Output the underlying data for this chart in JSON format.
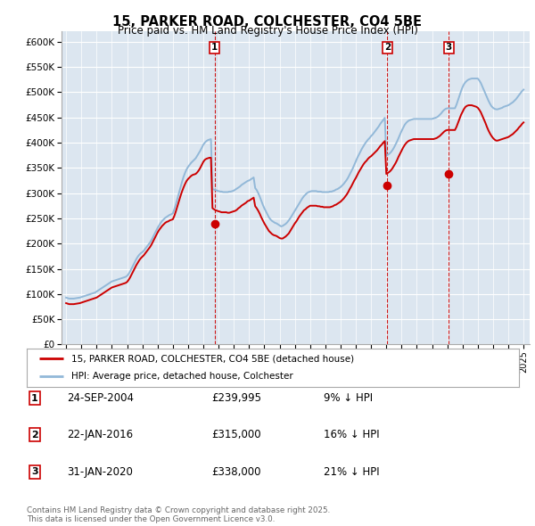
{
  "title": "15, PARKER ROAD, COLCHESTER, CO4 5BE",
  "subtitle": "Price paid vs. HM Land Registry's House Price Index (HPI)",
  "bg_color": "#dce6f0",
  "ylim": [
    0,
    620000
  ],
  "yticks": [
    0,
    50000,
    100000,
    150000,
    200000,
    250000,
    300000,
    350000,
    400000,
    450000,
    500000,
    550000,
    600000
  ],
  "hpi_color": "#92b8d8",
  "sale_color": "#cc0000",
  "vline_color": "#cc0000",
  "sale_points": [
    {
      "date_num": 2004.73,
      "price": 239995,
      "label": "1"
    },
    {
      "date_num": 2016.06,
      "price": 315000,
      "label": "2"
    },
    {
      "date_num": 2020.08,
      "price": 338000,
      "label": "3"
    }
  ],
  "legend_sale_label": "15, PARKER ROAD, COLCHESTER, CO4 5BE (detached house)",
  "legend_hpi_label": "HPI: Average price, detached house, Colchester",
  "table_rows": [
    {
      "num": "1",
      "date": "24-SEP-2004",
      "price": "£239,995",
      "pct": "9% ↓ HPI"
    },
    {
      "num": "2",
      "date": "22-JAN-2016",
      "price": "£315,000",
      "pct": "16% ↓ HPI"
    },
    {
      "num": "3",
      "date": "31-JAN-2020",
      "price": "£338,000",
      "pct": "21% ↓ HPI"
    }
  ],
  "footer": "Contains HM Land Registry data © Crown copyright and database right 2025.\nThis data is licensed under the Open Government Licence v3.0.",
  "hpi_years": [
    1995.0,
    1995.1,
    1995.2,
    1995.3,
    1995.4,
    1995.5,
    1995.6,
    1995.7,
    1995.8,
    1995.9,
    1996.0,
    1996.1,
    1996.2,
    1996.3,
    1996.4,
    1996.5,
    1996.6,
    1996.7,
    1996.8,
    1996.9,
    1997.0,
    1997.1,
    1997.2,
    1997.3,
    1997.4,
    1997.5,
    1997.6,
    1997.7,
    1997.8,
    1997.9,
    1998.0,
    1998.1,
    1998.2,
    1998.3,
    1998.4,
    1998.5,
    1998.6,
    1998.7,
    1998.8,
    1998.9,
    1999.0,
    1999.1,
    1999.2,
    1999.3,
    1999.4,
    1999.5,
    1999.6,
    1999.7,
    1999.8,
    1999.9,
    2000.0,
    2000.1,
    2000.2,
    2000.3,
    2000.4,
    2000.5,
    2000.6,
    2000.7,
    2000.8,
    2000.9,
    2001.0,
    2001.1,
    2001.2,
    2001.3,
    2001.4,
    2001.5,
    2001.6,
    2001.7,
    2001.8,
    2001.9,
    2002.0,
    2002.1,
    2002.2,
    2002.3,
    2002.4,
    2002.5,
    2002.6,
    2002.7,
    2002.8,
    2002.9,
    2003.0,
    2003.1,
    2003.2,
    2003.3,
    2003.4,
    2003.5,
    2003.6,
    2003.7,
    2003.8,
    2003.9,
    2004.0,
    2004.1,
    2004.2,
    2004.3,
    2004.4,
    2004.5,
    2004.6,
    2004.7,
    2004.8,
    2004.9,
    2005.0,
    2005.1,
    2005.2,
    2005.3,
    2005.4,
    2005.5,
    2005.6,
    2005.7,
    2005.8,
    2005.9,
    2006.0,
    2006.1,
    2006.2,
    2006.3,
    2006.4,
    2006.5,
    2006.6,
    2006.7,
    2006.8,
    2006.9,
    2007.0,
    2007.1,
    2007.2,
    2007.3,
    2007.4,
    2007.5,
    2007.6,
    2007.7,
    2007.8,
    2007.9,
    2008.0,
    2008.1,
    2008.2,
    2008.3,
    2008.4,
    2008.5,
    2008.6,
    2008.7,
    2008.8,
    2008.9,
    2009.0,
    2009.1,
    2009.2,
    2009.3,
    2009.4,
    2009.5,
    2009.6,
    2009.7,
    2009.8,
    2009.9,
    2010.0,
    2010.1,
    2010.2,
    2010.3,
    2010.4,
    2010.5,
    2010.6,
    2010.7,
    2010.8,
    2010.9,
    2011.0,
    2011.1,
    2011.2,
    2011.3,
    2011.4,
    2011.5,
    2011.6,
    2011.7,
    2011.8,
    2011.9,
    2012.0,
    2012.1,
    2012.2,
    2012.3,
    2012.4,
    2012.5,
    2012.6,
    2012.7,
    2012.8,
    2012.9,
    2013.0,
    2013.1,
    2013.2,
    2013.3,
    2013.4,
    2013.5,
    2013.6,
    2013.7,
    2013.8,
    2013.9,
    2014.0,
    2014.1,
    2014.2,
    2014.3,
    2014.4,
    2014.5,
    2014.6,
    2014.7,
    2014.8,
    2014.9,
    2015.0,
    2015.1,
    2015.2,
    2015.3,
    2015.4,
    2015.5,
    2015.6,
    2015.7,
    2015.8,
    2015.9,
    2016.0,
    2016.1,
    2016.2,
    2016.3,
    2016.4,
    2016.5,
    2016.6,
    2016.7,
    2016.8,
    2016.9,
    2017.0,
    2017.1,
    2017.2,
    2017.3,
    2017.4,
    2017.5,
    2017.6,
    2017.7,
    2017.8,
    2017.9,
    2018.0,
    2018.1,
    2018.2,
    2018.3,
    2018.4,
    2018.5,
    2018.6,
    2018.7,
    2018.8,
    2018.9,
    2019.0,
    2019.1,
    2019.2,
    2019.3,
    2019.4,
    2019.5,
    2019.6,
    2019.7,
    2019.8,
    2019.9,
    2020.0,
    2020.1,
    2020.2,
    2020.3,
    2020.4,
    2020.5,
    2020.6,
    2020.7,
    2020.8,
    2020.9,
    2021.0,
    2021.1,
    2021.2,
    2021.3,
    2021.4,
    2021.5,
    2021.6,
    2021.7,
    2021.8,
    2021.9,
    2022.0,
    2022.1,
    2022.2,
    2022.3,
    2022.4,
    2022.5,
    2022.6,
    2022.7,
    2022.8,
    2022.9,
    2023.0,
    2023.1,
    2023.2,
    2023.3,
    2023.4,
    2023.5,
    2023.6,
    2023.7,
    2023.8,
    2023.9,
    2024.0,
    2024.1,
    2024.2,
    2024.3,
    2024.4,
    2024.5,
    2024.6,
    2024.7,
    2024.8,
    2024.9,
    2025.0
  ],
  "hpi_vals": [
    93000,
    92000,
    91000,
    91000,
    91000,
    91000,
    91500,
    92000,
    92500,
    93000,
    94000,
    95000,
    96000,
    97000,
    98000,
    99000,
    100000,
    101000,
    102000,
    103000,
    105000,
    107000,
    109000,
    111000,
    113000,
    115000,
    117000,
    119000,
    121000,
    123000,
    125000,
    126000,
    127000,
    128000,
    129000,
    130000,
    131000,
    132000,
    133000,
    134000,
    136000,
    140000,
    145000,
    151000,
    157000,
    163000,
    169000,
    174000,
    178000,
    181000,
    183000,
    186000,
    190000,
    194000,
    198000,
    202000,
    207000,
    213000,
    219000,
    225000,
    231000,
    236000,
    241000,
    245000,
    248000,
    251000,
    253000,
    255000,
    257000,
    258000,
    260000,
    268000,
    278000,
    289000,
    300000,
    311000,
    322000,
    332000,
    340000,
    347000,
    352000,
    356000,
    360000,
    363000,
    366000,
    369000,
    374000,
    379000,
    384000,
    390000,
    396000,
    400000,
    403000,
    405000,
    406000,
    407000,
    308000,
    307000,
    306000,
    305000,
    304000,
    303000,
    303000,
    302000,
    302000,
    302000,
    302000,
    303000,
    303000,
    304000,
    305000,
    307000,
    309000,
    311000,
    313000,
    316000,
    318000,
    320000,
    322000,
    324000,
    325000,
    327000,
    329000,
    331000,
    310000,
    306000,
    300000,
    293000,
    285000,
    277000,
    270000,
    264000,
    258000,
    252000,
    248000,
    245000,
    243000,
    241000,
    240000,
    238000,
    236000,
    234000,
    235000,
    237000,
    239000,
    242000,
    246000,
    250000,
    255000,
    260000,
    265000,
    270000,
    275000,
    280000,
    285000,
    290000,
    294000,
    297000,
    300000,
    302000,
    303000,
    304000,
    304000,
    304000,
    304000,
    303000,
    303000,
    303000,
    302000,
    302000,
    302000,
    302000,
    302000,
    303000,
    303000,
    304000,
    305000,
    307000,
    308000,
    310000,
    312000,
    315000,
    318000,
    322000,
    326000,
    331000,
    337000,
    343000,
    349000,
    356000,
    363000,
    370000,
    376000,
    382000,
    388000,
    393000,
    398000,
    402000,
    406000,
    409000,
    413000,
    416000,
    420000,
    424000,
    428000,
    432000,
    437000,
    441000,
    445000,
    449000,
    374000,
    376000,
    378000,
    381000,
    385000,
    390000,
    396000,
    402000,
    409000,
    416000,
    423000,
    429000,
    435000,
    439000,
    442000,
    444000,
    445000,
    446000,
    447000,
    447000,
    447000,
    447000,
    447000,
    447000,
    447000,
    447000,
    447000,
    447000,
    447000,
    447000,
    447000,
    448000,
    449000,
    450000,
    452000,
    455000,
    458000,
    462000,
    465000,
    467000,
    468000,
    468000,
    468000,
    468000,
    468000,
    468000,
    475000,
    484000,
    493000,
    502000,
    510000,
    516000,
    520000,
    523000,
    525000,
    526000,
    527000,
    527000,
    527000,
    527000,
    527000,
    523000,
    518000,
    511000,
    504000,
    497000,
    490000,
    483000,
    477000,
    472000,
    469000,
    467000,
    466000,
    466000,
    467000,
    468000,
    469000,
    471000,
    472000,
    473000,
    474000,
    476000,
    478000,
    480000,
    483000,
    486000,
    490000,
    494000,
    498000,
    502000,
    505000
  ],
  "sale_vals": [
    82000,
    81000,
    80000,
    80000,
    80000,
    80000,
    80500,
    81000,
    81500,
    82000,
    83000,
    84000,
    85000,
    86000,
    87000,
    88000,
    89000,
    90000,
    91000,
    92000,
    93000,
    95000,
    97000,
    99000,
    101000,
    103000,
    105000,
    107000,
    109000,
    111000,
    113000,
    114000,
    115000,
    116000,
    117000,
    118000,
    119000,
    120000,
    121000,
    122000,
    124000,
    128000,
    133000,
    139000,
    145000,
    151000,
    157000,
    162000,
    167000,
    171000,
    174000,
    177000,
    181000,
    185000,
    189000,
    193000,
    198000,
    204000,
    210000,
    216000,
    222000,
    227000,
    231000,
    235000,
    238000,
    241000,
    243000,
    244000,
    246000,
    247000,
    248000,
    255000,
    264000,
    274000,
    284000,
    294000,
    303000,
    311000,
    318000,
    324000,
    328000,
    331000,
    334000,
    336000,
    337000,
    338000,
    341000,
    345000,
    350000,
    356000,
    362000,
    366000,
    368000,
    369000,
    370000,
    370000,
    270000,
    268000,
    266000,
    265000,
    264000,
    263000,
    262000,
    262000,
    262000,
    262000,
    261000,
    261000,
    262000,
    263000,
    264000,
    265000,
    267000,
    270000,
    272000,
    275000,
    277000,
    279000,
    281000,
    284000,
    285000,
    287000,
    289000,
    291000,
    274000,
    270000,
    265000,
    259000,
    252000,
    246000,
    240000,
    235000,
    230000,
    225000,
    222000,
    219000,
    217000,
    216000,
    215000,
    213000,
    211000,
    210000,
    210000,
    212000,
    214000,
    217000,
    220000,
    225000,
    230000,
    235000,
    240000,
    244000,
    249000,
    254000,
    258000,
    262000,
    266000,
    268000,
    271000,
    273000,
    275000,
    275000,
    275000,
    275000,
    275000,
    274000,
    274000,
    273000,
    273000,
    272000,
    272000,
    272000,
    272000,
    272000,
    273000,
    274000,
    276000,
    277000,
    279000,
    281000,
    283000,
    286000,
    289000,
    293000,
    297000,
    302000,
    308000,
    313000,
    319000,
    325000,
    330000,
    336000,
    342000,
    347000,
    352000,
    357000,
    361000,
    364000,
    368000,
    371000,
    373000,
    376000,
    379000,
    382000,
    385000,
    389000,
    393000,
    396000,
    400000,
    403000,
    338000,
    340000,
    342000,
    345000,
    349000,
    354000,
    359000,
    365000,
    372000,
    378000,
    384000,
    390000,
    395000,
    399000,
    402000,
    404000,
    405000,
    406000,
    407000,
    407000,
    407000,
    407000,
    407000,
    407000,
    407000,
    407000,
    407000,
    407000,
    407000,
    407000,
    407000,
    407000,
    408000,
    409000,
    411000,
    413000,
    416000,
    419000,
    422000,
    424000,
    425000,
    425000,
    425000,
    425000,
    425000,
    425000,
    431000,
    439000,
    447000,
    455000,
    461000,
    467000,
    471000,
    473000,
    474000,
    474000,
    474000,
    473000,
    472000,
    471000,
    469000,
    465000,
    460000,
    453000,
    446000,
    439000,
    431000,
    424000,
    418000,
    413000,
    409000,
    406000,
    404000,
    404000,
    405000,
    406000,
    407000,
    408000,
    409000,
    410000,
    411000,
    413000,
    415000,
    417000,
    420000,
    423000,
    426000,
    430000,
    433000,
    437000,
    440000
  ]
}
